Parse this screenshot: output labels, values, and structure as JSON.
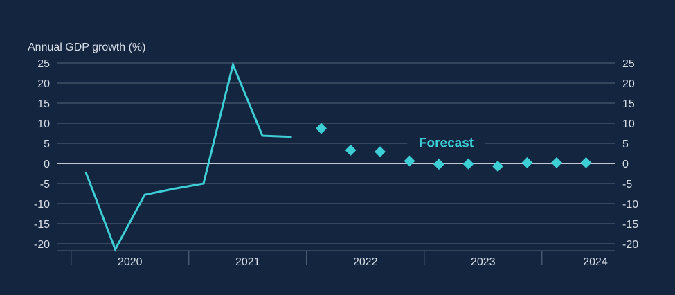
{
  "colors": {
    "background": "#13253f",
    "series": "#3ecfd6",
    "grid": "#55657a",
    "zero_line": "#d9dee6",
    "text": "#d7dde6"
  },
  "chart_data": {
    "type": "line",
    "ylabel": "Annual GDP growth (%)",
    "ylim": [
      -20,
      25
    ],
    "yticks": [
      25,
      20,
      15,
      10,
      5,
      0,
      -5,
      -10,
      -15,
      -20
    ],
    "ytick_labels": [
      "25",
      "20",
      "15",
      "10",
      "5",
      "0",
      "-5",
      "-10",
      "-15",
      "-20"
    ],
    "y_axis_both_sides": true,
    "grid": true,
    "x_axis": {
      "unit": "quarter",
      "categories": [
        "2020",
        "2021",
        "2022",
        "2023",
        "2024"
      ]
    },
    "series": [
      {
        "kind": "actual",
        "style": "line",
        "points": [
          {
            "x": "2020 Q1",
            "y": -2.2
          },
          {
            "x": "2020 Q2",
            "y": -21.4
          },
          {
            "x": "2020 Q3",
            "y": -7.8
          },
          {
            "x": "2020 Q4",
            "y": -6.3
          },
          {
            "x": "2021 Q1",
            "y": -5.0
          },
          {
            "x": "2021 Q2",
            "y": 24.6
          },
          {
            "x": "2021 Q3",
            "y": 6.9
          },
          {
            "x": "2021 Q4",
            "y": 6.6
          }
        ]
      },
      {
        "kind": "forecast",
        "style": "diamond",
        "points": [
          {
            "x": "2022 Q1",
            "y": 8.7
          },
          {
            "x": "2022 Q2",
            "y": 3.3
          },
          {
            "x": "2022 Q3",
            "y": 2.9
          },
          {
            "x": "2022 Q4",
            "y": 0.6
          },
          {
            "x": "2023 Q1",
            "y": -0.2
          },
          {
            "x": "2023 Q2",
            "y": -0.1
          },
          {
            "x": "2023 Q3",
            "y": -0.7
          },
          {
            "x": "2023 Q4",
            "y": 0.2
          },
          {
            "x": "2024 Q1",
            "y": 0.2
          },
          {
            "x": "2024 Q2",
            "y": 0.2
          }
        ]
      }
    ],
    "annotations": [
      {
        "text": "Forecast",
        "x": "2022 Q4",
        "y": 5.3
      }
    ]
  }
}
